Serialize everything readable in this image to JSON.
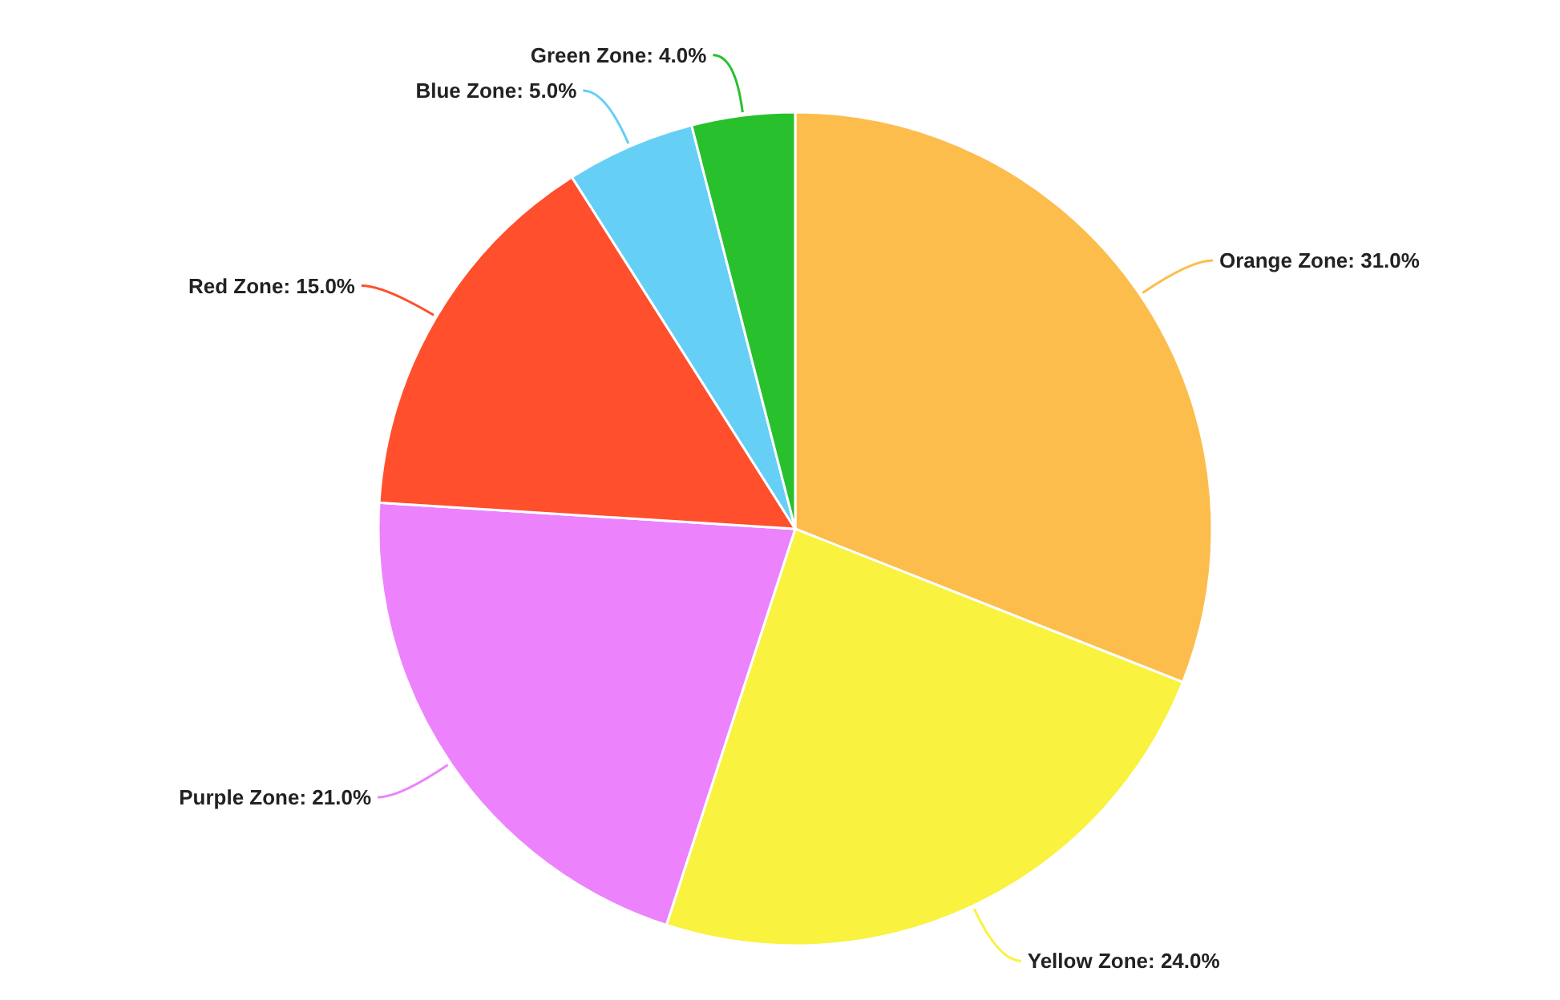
{
  "chart_data": {
    "type": "pie",
    "categories": [
      "Orange Zone",
      "Yellow Zone",
      "Purple Zone",
      "Red Zone",
      "Blue Zone",
      "Green Zone"
    ],
    "values": [
      31,
      24,
      21,
      15,
      5,
      4
    ],
    "value_labels": [
      "31.0%",
      "24.0%",
      "21.0%",
      "15.0%",
      "5.0%",
      "4.0%"
    ],
    "colors": [
      "#fdbd4c",
      "#f9f23e",
      "#ec83fd",
      "#ff4f2c",
      "#66cff5",
      "#28c02c"
    ],
    "data_labels": true
  }
}
